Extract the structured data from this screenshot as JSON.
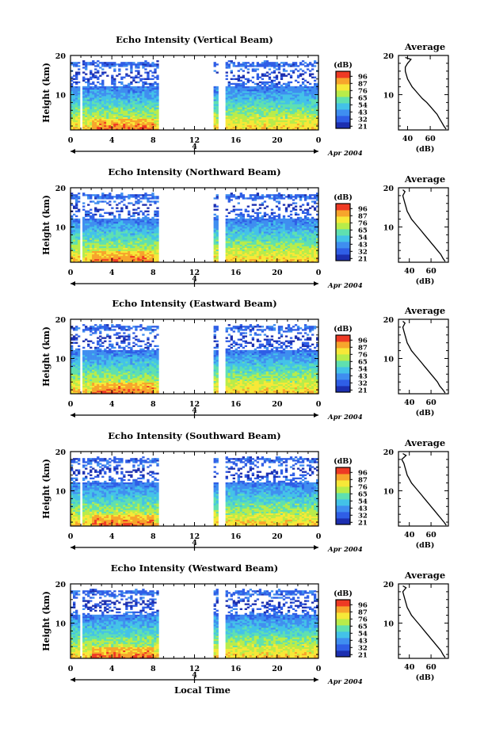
{
  "chart_data": [
    {
      "type": "heatmap",
      "title": "Echo Intensity (Vertical Beam)",
      "ylabel": "Height (km)",
      "x_ticks": [
        "0",
        "4",
        "8",
        "12",
        "16",
        "20",
        "0"
      ],
      "y_ticks": [
        "20",
        "10"
      ],
      "date_mark": "4",
      "date_label": "Apr 2004",
      "xlim": [
        0,
        24
      ],
      "ylim": [
        1,
        20
      ],
      "data_gaps_hours": [
        [
          8.6,
          13.8
        ],
        [
          14.2,
          14.9
        ]
      ],
      "colorbar": {
        "label": "(dB)",
        "ticks": [
          "96",
          "87",
          "76",
          "65",
          "54",
          "43",
          "32",
          "21"
        ]
      },
      "average_profile": {
        "title": "Average",
        "xlabel": "(dB)",
        "x_ticks": [
          "40",
          "60"
        ],
        "y_ticks": [
          "20",
          "10"
        ],
        "xlim": [
          32,
          76
        ],
        "ylim": [
          1,
          20
        ],
        "height_km": [
          1.2,
          2,
          3,
          4,
          5,
          6,
          7,
          8,
          9,
          10,
          11,
          12,
          13,
          14,
          15,
          16,
          17,
          18,
          19,
          19.5
        ],
        "db": [
          74,
          72,
          70,
          68,
          66,
          63,
          60,
          57,
          53,
          50,
          47,
          44,
          42,
          40,
          39,
          38,
          38,
          40,
          43,
          38
        ]
      }
    },
    {
      "type": "heatmap",
      "title": "Echo Intensity (Northward Beam)",
      "ylabel": "Height (km)",
      "x_ticks": [
        "0",
        "4",
        "8",
        "12",
        "16",
        "20",
        "0"
      ],
      "y_ticks": [
        "20",
        "10"
      ],
      "date_mark": "4",
      "date_label": "Apr 2004",
      "xlim": [
        0,
        24
      ],
      "ylim": [
        1,
        20
      ],
      "data_gaps_hours": [
        [
          8.6,
          13.8
        ],
        [
          14.2,
          14.9
        ]
      ],
      "colorbar": {
        "label": "(dB)",
        "ticks": [
          "96",
          "87",
          "76",
          "65",
          "54",
          "43",
          "32",
          "21"
        ]
      },
      "average_profile": {
        "title": "Average",
        "xlabel": "(dB)",
        "x_ticks": [
          "40",
          "60"
        ],
        "y_ticks": [
          "20",
          "10"
        ],
        "xlim": [
          30,
          76
        ],
        "ylim": [
          1,
          20
        ],
        "height_km": [
          1.2,
          2,
          3,
          4,
          5,
          6,
          7,
          8,
          9,
          10,
          11,
          12,
          13,
          14,
          15,
          16,
          17,
          18,
          19,
          19.5
        ],
        "db": [
          73,
          71,
          69,
          66,
          63,
          60,
          57,
          54,
          51,
          48,
          45,
          42,
          40,
          38,
          37,
          36,
          35,
          34,
          36,
          34
        ]
      }
    },
    {
      "type": "heatmap",
      "title": "Echo Intensity (Eastward Beam)",
      "ylabel": "Height (km)",
      "x_ticks": [
        "0",
        "4",
        "8",
        "12",
        "16",
        "20",
        "0"
      ],
      "y_ticks": [
        "20",
        "10"
      ],
      "date_mark": "4",
      "date_label": "Apr 2004",
      "xlim": [
        0,
        24
      ],
      "ylim": [
        1,
        20
      ],
      "data_gaps_hours": [
        [
          8.6,
          13.8
        ],
        [
          14.2,
          14.9
        ]
      ],
      "colorbar": {
        "label": "(dB)",
        "ticks": [
          "96",
          "87",
          "76",
          "65",
          "54",
          "43",
          "32",
          "21"
        ]
      },
      "average_profile": {
        "title": "Average",
        "xlabel": "(dB)",
        "x_ticks": [
          "40",
          "60"
        ],
        "y_ticks": [
          "20",
          "10"
        ],
        "xlim": [
          30,
          76
        ],
        "ylim": [
          1,
          20
        ],
        "height_km": [
          1.2,
          2,
          3,
          4,
          5,
          6,
          7,
          8,
          9,
          10,
          11,
          12,
          13,
          14,
          15,
          16,
          17,
          18,
          19,
          19.5
        ],
        "db": [
          73,
          71,
          68,
          66,
          63,
          60,
          57,
          54,
          51,
          48,
          45,
          42,
          40,
          38,
          37,
          36,
          35,
          34,
          36,
          34
        ]
      }
    },
    {
      "type": "heatmap",
      "title": "Echo Intensity (Southward Beam)",
      "ylabel": "Height (km)",
      "x_ticks": [
        "0",
        "4",
        "8",
        "12",
        "16",
        "20",
        "0"
      ],
      "y_ticks": [
        "20",
        "10"
      ],
      "date_mark": "4",
      "date_label": "Apr 2004",
      "xlim": [
        0,
        24
      ],
      "ylim": [
        1,
        20
      ],
      "data_gaps_hours": [
        [
          8.6,
          13.8
        ],
        [
          14.2,
          14.9
        ]
      ],
      "colorbar": {
        "label": "(dB)",
        "ticks": [
          "96",
          "87",
          "76",
          "65",
          "54",
          "43",
          "32",
          "21"
        ]
      },
      "average_profile": {
        "title": "Average",
        "xlabel": "(dB)",
        "x_ticks": [
          "40",
          "60"
        ],
        "y_ticks": [
          "20",
          "10"
        ],
        "xlim": [
          30,
          76
        ],
        "ylim": [
          1,
          20
        ],
        "height_km": [
          1.2,
          2,
          3,
          4,
          5,
          6,
          7,
          8,
          9,
          10,
          11,
          12,
          13,
          14,
          15,
          16,
          17,
          18,
          19,
          19.5
        ],
        "db": [
          74,
          72,
          69,
          66,
          63,
          60,
          57,
          54,
          51,
          48,
          45,
          42,
          40,
          38,
          37,
          36,
          35,
          33,
          37,
          34
        ]
      }
    },
    {
      "type": "heatmap",
      "title": "Echo Intensity (Westward Beam)",
      "ylabel": "Height (km)",
      "x_ticks": [
        "0",
        "4",
        "8",
        "12",
        "16",
        "20",
        "0"
      ],
      "y_ticks": [
        "20",
        "10"
      ],
      "date_mark": "4",
      "date_label": "Apr 2004",
      "xlabel": "Local Time",
      "xlim": [
        0,
        24
      ],
      "ylim": [
        1,
        20
      ],
      "data_gaps_hours": [
        [
          8.6,
          13.8
        ],
        [
          14.2,
          14.9
        ]
      ],
      "colorbar": {
        "label": "(dB)",
        "ticks": [
          "96",
          "87",
          "76",
          "65",
          "54",
          "43",
          "32",
          "21"
        ]
      },
      "average_profile": {
        "title": "Average",
        "xlabel": "(dB)",
        "x_ticks": [
          "40",
          "60"
        ],
        "y_ticks": [
          "20",
          "10"
        ],
        "xlim": [
          30,
          76
        ],
        "ylim": [
          1,
          20
        ],
        "height_km": [
          1.2,
          2,
          3,
          4,
          5,
          6,
          7,
          8,
          9,
          10,
          11,
          12,
          13,
          14,
          15,
          16,
          17,
          18,
          19,
          19.5
        ],
        "db": [
          73,
          71,
          69,
          66,
          63,
          60,
          57,
          54,
          51,
          48,
          45,
          42,
          40,
          38,
          37,
          36,
          35,
          34,
          37,
          34
        ]
      }
    }
  ],
  "colors": {
    "colorbar_bottom_to_top": [
      "#1c2fb0",
      "#2f5ee6",
      "#3f8ef0",
      "#43c2e8",
      "#5fe0b0",
      "#b8ec4a",
      "#f7e838",
      "#f7a52c",
      "#ee3a24"
    ]
  }
}
